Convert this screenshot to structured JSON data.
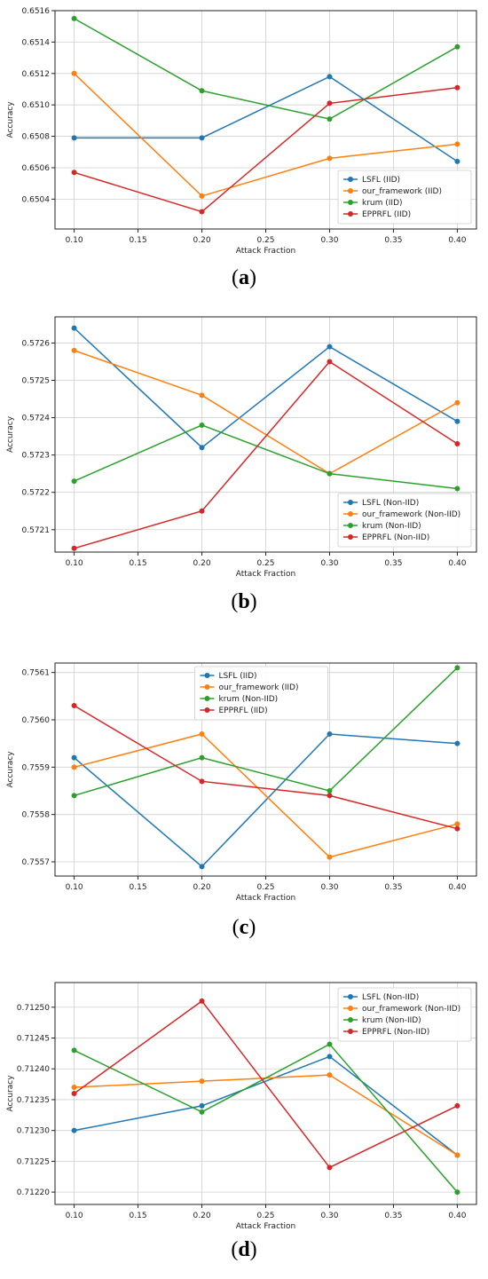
{
  "colors": {
    "LSFL": "#1f77b4",
    "our_framework": "#ff7f0e",
    "krum": "#2ca02c",
    "EPPRFL": "#d62728",
    "grid": "#d0d0d0",
    "axes": "#222222"
  },
  "panels": [
    {
      "open": "(",
      "letter": "a",
      "close": ")"
    },
    {
      "open": "(",
      "letter": "b",
      "close": ")"
    },
    {
      "open": "(",
      "letter": "c",
      "close": ")"
    },
    {
      "open": "(",
      "letter": "d",
      "close": ")"
    }
  ],
  "chart_data": [
    {
      "type": "line",
      "xlabel": "Attack Fraction",
      "ylabel": "Accuracy",
      "x": [
        0.1,
        0.2,
        0.3,
        0.4
      ],
      "xlim": [
        0.085,
        0.415
      ],
      "ylim": [
        0.65021,
        0.6516
      ],
      "xticks": [
        "0.10",
        "0.15",
        "0.20",
        "0.25",
        "0.30",
        "0.35",
        "0.40"
      ],
      "xtick_values": [
        0.1,
        0.15,
        0.2,
        0.25,
        0.3,
        0.35,
        0.4
      ],
      "yticks": [
        "0.6504",
        "0.6506",
        "0.6508",
        "0.6510",
        "0.6512",
        "0.6514",
        "0.6516"
      ],
      "ytick_values": [
        0.6504,
        0.6506,
        0.6508,
        0.651,
        0.6512,
        0.6514,
        0.6516
      ],
      "grid": true,
      "legend_position": "lower-right",
      "series": [
        {
          "name": "LSFL (IID)",
          "color_key": "LSFL",
          "values": [
            0.65079,
            0.65079,
            0.65118,
            0.65064
          ]
        },
        {
          "name": "our_framework (IID)",
          "color_key": "our_framework",
          "values": [
            0.6512,
            0.65042,
            0.65066,
            0.65075
          ]
        },
        {
          "name": "krum (IID)",
          "color_key": "krum",
          "values": [
            0.65155,
            0.65109,
            0.65091,
            0.65137
          ]
        },
        {
          "name": "EPPRFL (IID)",
          "color_key": "EPPRFL",
          "values": [
            0.65057,
            0.65032,
            0.65101,
            0.65111
          ]
        }
      ]
    },
    {
      "type": "line",
      "xlabel": "Attack Fraction",
      "ylabel": "Accuracy",
      "x": [
        0.1,
        0.2,
        0.3,
        0.4
      ],
      "xlim": [
        0.085,
        0.415
      ],
      "ylim": [
        0.57204,
        0.57267
      ],
      "xticks": [
        "0.10",
        "0.15",
        "0.20",
        "0.25",
        "0.30",
        "0.35",
        "0.40"
      ],
      "xtick_values": [
        0.1,
        0.15,
        0.2,
        0.25,
        0.3,
        0.35,
        0.4
      ],
      "yticks": [
        "0.5721",
        "0.5722",
        "0.5723",
        "0.5724",
        "0.5725",
        "0.5726"
      ],
      "ytick_values": [
        0.5721,
        0.5722,
        0.5723,
        0.5724,
        0.5725,
        0.5726
      ],
      "grid": true,
      "legend_position": "lower-right",
      "series": [
        {
          "name": "LSFL (Non-IID)",
          "color_key": "LSFL",
          "values": [
            0.57264,
            0.57232,
            0.57259,
            0.57239
          ]
        },
        {
          "name": "our_framework (Non-IID)",
          "color_key": "our_framework",
          "values": [
            0.57258,
            0.57246,
            0.57225,
            0.57244
          ]
        },
        {
          "name": "krum (Non-IID)",
          "color_key": "krum",
          "values": [
            0.57223,
            0.57238,
            0.57225,
            0.57221
          ]
        },
        {
          "name": "EPPRFL (Non-IID)",
          "color_key": "EPPRFL",
          "values": [
            0.57205,
            0.57215,
            0.57255,
            0.57233
          ]
        }
      ]
    },
    {
      "type": "line",
      "xlabel": "Attack Fraction",
      "ylabel": "Accuracy",
      "x": [
        0.1,
        0.2,
        0.3,
        0.4
      ],
      "xlim": [
        0.085,
        0.415
      ],
      "ylim": [
        0.75567,
        0.75612
      ],
      "xticks": [
        "0.10",
        "0.15",
        "0.20",
        "0.25",
        "0.30",
        "0.35",
        "0.40"
      ],
      "xtick_values": [
        0.1,
        0.15,
        0.2,
        0.25,
        0.3,
        0.35,
        0.4
      ],
      "yticks": [
        "0.7557",
        "0.7558",
        "0.7559",
        "0.7560",
        "0.7561"
      ],
      "ytick_values": [
        0.7557,
        0.7558,
        0.7559,
        0.756,
        0.7561
      ],
      "grid": true,
      "legend_position": "upper-center",
      "series": [
        {
          "name": "LSFL (IID)",
          "color_key": "LSFL",
          "values": [
            0.75592,
            0.75569,
            0.75597,
            0.75595
          ]
        },
        {
          "name": "our_framework (IID)",
          "color_key": "our_framework",
          "values": [
            0.7559,
            0.75597,
            0.75571,
            0.75578
          ]
        },
        {
          "name": "krum (Non-IID)",
          "color_key": "krum",
          "values": [
            0.75584,
            0.75592,
            0.75585,
            0.75611
          ]
        },
        {
          "name": "EPPRFL (IID)",
          "color_key": "EPPRFL",
          "values": [
            0.75603,
            0.75587,
            0.75584,
            0.75577
          ]
        }
      ]
    },
    {
      "type": "line",
      "xlabel": "Attack Fraction",
      "ylabel": "Accuracy",
      "x": [
        0.1,
        0.2,
        0.3,
        0.4
      ],
      "xlim": [
        0.085,
        0.415
      ],
      "ylim": [
        0.71218,
        0.71254
      ],
      "xticks": [
        "0.10",
        "0.15",
        "0.20",
        "0.25",
        "0.30",
        "0.35",
        "0.40"
      ],
      "xtick_values": [
        0.1,
        0.15,
        0.2,
        0.25,
        0.3,
        0.35,
        0.4
      ],
      "yticks": [
        "0.71220",
        "0.71225",
        "0.71230",
        "0.71235",
        "0.71240",
        "0.71245",
        "0.71250"
      ],
      "ytick_values": [
        0.7122,
        0.71225,
        0.7123,
        0.71235,
        0.7124,
        0.71245,
        0.7125
      ],
      "grid": true,
      "legend_position": "upper-right",
      "series": [
        {
          "name": "LSFL (Non-IID)",
          "color_key": "LSFL",
          "values": [
            0.7123,
            0.71234,
            0.71242,
            0.71226
          ]
        },
        {
          "name": "our_framework (Non-IID)",
          "color_key": "our_framework",
          "values": [
            0.71237,
            0.71238,
            0.71239,
            0.71226
          ]
        },
        {
          "name": "krum (Non-IID)",
          "color_key": "krum",
          "values": [
            0.71243,
            0.71233,
            0.71244,
            0.7122
          ]
        },
        {
          "name": "EPPRFL (Non-IID)",
          "color_key": "EPPRFL",
          "values": [
            0.71236,
            0.71251,
            0.71224,
            0.71234
          ]
        }
      ]
    }
  ]
}
